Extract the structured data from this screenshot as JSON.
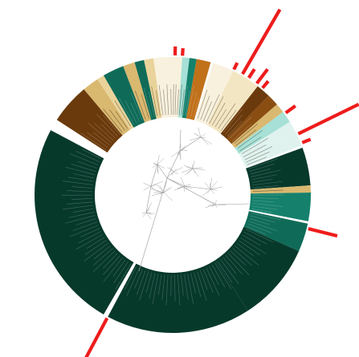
{
  "chart_data": {
    "type": "circular-phylogenetic-tree",
    "title": "",
    "legend": "none",
    "palette": {
      "very_dark_green": "#07392b",
      "dark_teal": "#0f6b58",
      "teal": "#15806c",
      "light_teal": "#a6e0d6",
      "pale_mint": "#dff2ee",
      "cream": "#f3e6c3",
      "pale_cream": "#f8f1de",
      "tan": "#d9b870",
      "light_tan": "#e9d39a",
      "dark_brown": "#6b3a0c",
      "brown": "#8a4d12",
      "orange_brown": "#c0711a",
      "marker_red": "#ee1c1c",
      "branch_gray": "#9a9a9a"
    },
    "clades": [
      {
        "start": 0,
        "end": 1,
        "color": "pale_cream",
        "labels": 1
      },
      {
        "start": 1,
        "end": 4,
        "color": "pale_cream",
        "labels": 2
      },
      {
        "start": 4,
        "end": 7,
        "color": "light_teal",
        "labels": 2
      },
      {
        "start": 7,
        "end": 10,
        "color": "teal",
        "labels": 2
      },
      {
        "start": 10,
        "end": 16,
        "color": "orange_brown",
        "labels": 3
      },
      {
        "start": 17,
        "end": 26,
        "color": "pale_cream",
        "labels": 4
      },
      {
        "start": 26,
        "end": 38,
        "color": "cream",
        "labels": 5
      },
      {
        "start": 38,
        "end": 44,
        "color": "dark_brown",
        "labels": 3
      },
      {
        "start": 44,
        "end": 49,
        "color": "brown",
        "labels": 2
      },
      {
        "start": 49,
        "end": 53,
        "color": "tan",
        "labels": 2
      },
      {
        "start": 53,
        "end": 58,
        "color": "light_teal",
        "labels": 2
      },
      {
        "start": 58,
        "end": 63,
        "color": "pale_mint",
        "labels": 2
      },
      {
        "start": 63,
        "end": 69,
        "color": "pale_mint",
        "labels": 3
      },
      {
        "start": 70,
        "end": 86,
        "color": "very_dark_green",
        "labels": 8
      },
      {
        "start": 86,
        "end": 89,
        "color": "tan",
        "labels": 1
      },
      {
        "start": 89,
        "end": 101,
        "color": "teal",
        "labels": 6
      },
      {
        "start": 102,
        "end": 114,
        "color": "dark_teal",
        "labels": 6
      },
      {
        "start": 114,
        "end": 147,
        "color": "very_dark_green",
        "labels": 14
      },
      {
        "start": 147,
        "end": 208,
        "color": "very_dark_green",
        "labels": 26
      },
      {
        "start": 210,
        "end": 298,
        "color": "very_dark_green",
        "labels": 36
      },
      {
        "start": 303,
        "end": 320,
        "color": "dark_brown",
        "labels": 8
      },
      {
        "start": 320,
        "end": 327,
        "color": "tan",
        "labels": 3
      },
      {
        "start": 327,
        "end": 330,
        "color": "light_tan",
        "labels": 1
      },
      {
        "start": 330,
        "end": 339,
        "color": "dark_teal",
        "labels": 4
      },
      {
        "start": 339,
        "end": 344,
        "color": "tan",
        "labels": 2
      },
      {
        "start": 344,
        "end": 348,
        "color": "dark_teal",
        "labels": 2
      },
      {
        "start": 348,
        "end": 352,
        "color": "light_tan",
        "labels": 2
      },
      {
        "start": 352,
        "end": 356,
        "color": "pale_cream",
        "labels": 2
      },
      {
        "start": 356,
        "end": 360,
        "color": "pale_cream",
        "labels": 2
      }
    ],
    "markers": [
      {
        "angle": 1,
        "length": 0.06
      },
      {
        "angle": 4,
        "length": 0.05
      },
      {
        "angle": 26,
        "length": 0.05
      },
      {
        "angle": 30,
        "length": 0.5
      },
      {
        "angle": 33,
        "length": 0.07
      },
      {
        "angle": 37,
        "length": 0.12
      },
      {
        "angle": 40,
        "length": 0.06
      },
      {
        "angle": 54,
        "length": 0.08
      },
      {
        "angle": 64,
        "length": 0.45
      },
      {
        "angle": 68,
        "length": 0.06
      },
      {
        "angle": 104,
        "length": 0.2
      },
      {
        "angle": 208,
        "length": 0.38
      }
    ]
  }
}
